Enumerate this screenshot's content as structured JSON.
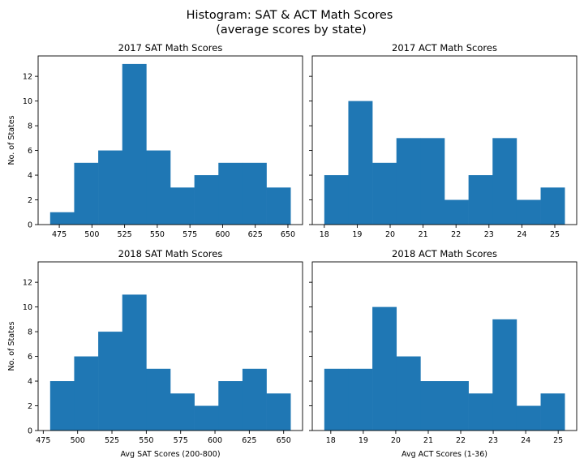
{
  "figure": {
    "title_line1": "Histogram: SAT & ACT Math Scores",
    "title_line2": "(average scores by state)",
    "bar_color": "#1f77b4"
  },
  "chart_data": [
    {
      "type": "bar",
      "title": "2017 SAT Math Scores",
      "xlabel": "",
      "ylabel": "No. of States",
      "bin_edges": [
        468,
        486.4,
        504.8,
        523.2,
        541.6,
        560,
        578.4,
        596.8,
        615.2,
        633.6,
        652
      ],
      "values": [
        1,
        5,
        6,
        13,
        6,
        3,
        4,
        5,
        5,
        3
      ],
      "xlim": [
        458.8,
        661.2
      ],
      "ylim": [
        0,
        13.65
      ],
      "xticks": [
        475,
        500,
        525,
        550,
        575,
        600,
        625,
        650
      ],
      "yticks": [
        0,
        2,
        4,
        6,
        8,
        10,
        12
      ],
      "grid": false
    },
    {
      "type": "bar",
      "title": "2017 ACT Math Scores",
      "xlabel": "",
      "ylabel": "",
      "bin_edges": [
        18.0,
        18.73,
        19.46,
        20.19,
        20.92,
        21.65,
        22.38,
        23.11,
        23.84,
        24.57,
        25.3
      ],
      "values": [
        4,
        10,
        5,
        7,
        7,
        2,
        4,
        7,
        2,
        3
      ],
      "xlim": [
        17.635,
        25.665
      ],
      "ylim": [
        0,
        13.65
      ],
      "xticks": [
        18,
        19,
        20,
        21,
        22,
        23,
        24,
        25
      ],
      "yticks": [
        0,
        2,
        4,
        6,
        8,
        10,
        12
      ],
      "grid": false
    },
    {
      "type": "bar",
      "title": "2018 SAT Math Scores",
      "xlabel": "Avg SAT Scores (200-800)",
      "ylabel": "No. of States",
      "bin_edges": [
        480,
        497.5,
        515,
        532.5,
        550,
        567.5,
        585,
        602.5,
        620,
        637.5,
        655
      ],
      "values": [
        4,
        6,
        8,
        11,
        5,
        3,
        2,
        4,
        5,
        3
      ],
      "xlim": [
        471.25,
        663.75
      ],
      "ylim": [
        0,
        13.65
      ],
      "xticks": [
        475,
        500,
        525,
        550,
        575,
        600,
        625,
        650
      ],
      "yticks": [
        0,
        2,
        4,
        6,
        8,
        10,
        12
      ],
      "grid": false
    },
    {
      "type": "bar",
      "title": "2018 ACT Math Scores",
      "xlabel": "Avg ACT Scores (1-36)",
      "ylabel": "",
      "bin_edges": [
        17.8,
        18.54,
        19.28,
        20.02,
        20.76,
        21.5,
        22.24,
        22.98,
        23.72,
        24.46,
        25.2
      ],
      "values": [
        5,
        5,
        10,
        6,
        4,
        4,
        3,
        9,
        2,
        3
      ],
      "xlim": [
        17.43,
        25.57
      ],
      "ylim": [
        0,
        13.65
      ],
      "xticks": [
        18,
        19,
        20,
        21,
        22,
        23,
        24,
        25
      ],
      "yticks": [
        0,
        2,
        4,
        6,
        8,
        10,
        12
      ],
      "grid": false
    }
  ]
}
